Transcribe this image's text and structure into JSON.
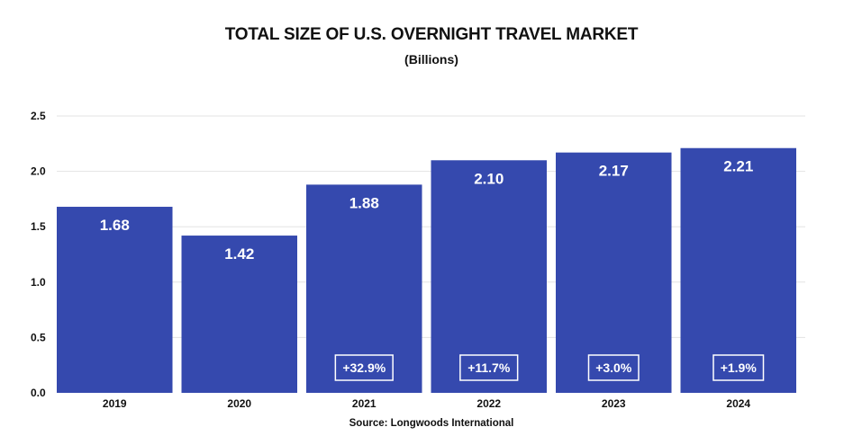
{
  "chart_data": {
    "type": "bar",
    "title": "TOTAL SIZE OF U.S. OVERNIGHT TRAVEL MARKET",
    "subtitle": "(Billions)",
    "source": "Source: Longwoods International",
    "categories": [
      "2019",
      "2020",
      "2021",
      "2022",
      "2023",
      "2024"
    ],
    "values": [
      1.68,
      1.42,
      1.88,
      2.1,
      2.17,
      2.21
    ],
    "value_labels": [
      "1.68",
      "1.42",
      "1.88",
      "2.10",
      "2.17",
      "2.21"
    ],
    "growth_labels": [
      "",
      "",
      "+32.9%",
      "+11.7%",
      "+3.0%",
      "+1.9%"
    ],
    "yticks": [
      "0.0",
      "0.5",
      "1.0",
      "1.5",
      "2.0",
      "2.5"
    ],
    "ytick_values": [
      0,
      0.5,
      1.0,
      1.5,
      2.0,
      2.5
    ],
    "ylim": [
      0,
      2.5
    ],
    "grid": true,
    "legend": "none",
    "colors": {
      "bar": "#3549AE",
      "grid": "#E3E3E3",
      "text": "#111111",
      "label": "#FFFFFF"
    }
  }
}
